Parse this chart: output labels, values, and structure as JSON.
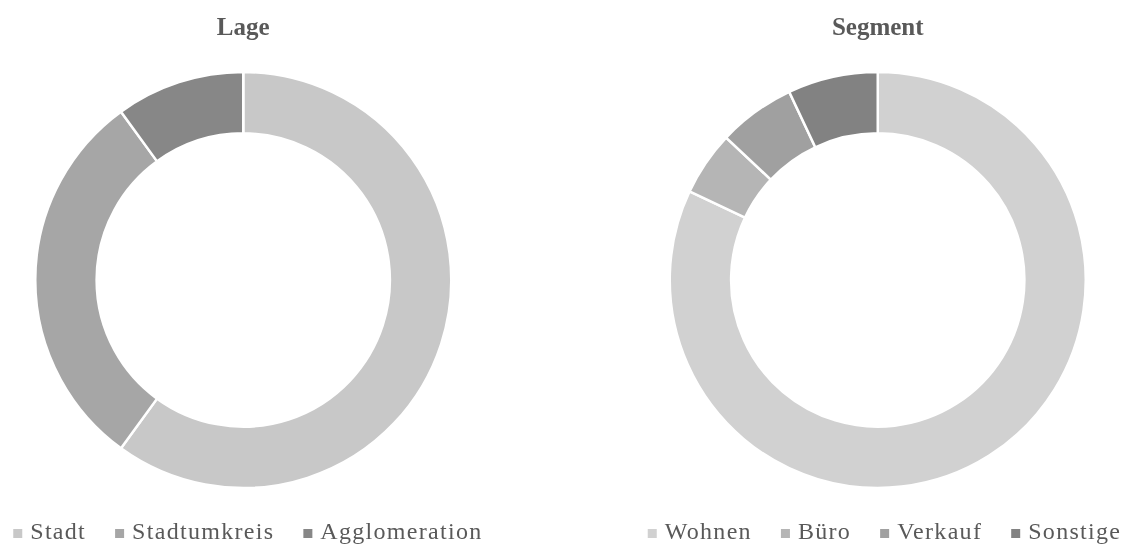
{
  "chart_data": [
    {
      "type": "donut",
      "title": "Lage",
      "categories": [
        "Stadt",
        "Stadtumkreis",
        "Agglomeration"
      ],
      "values": [
        60,
        30,
        10
      ],
      "colors": [
        "#c8c8c8",
        "#a6a6a6",
        "#878787"
      ],
      "legend": "bottom"
    },
    {
      "type": "donut",
      "title": "Segment",
      "categories": [
        "Wohnen",
        "Büro",
        "Verkauf",
        "Sonstige"
      ],
      "values": [
        82,
        5,
        6,
        7
      ],
      "colors": [
        "#d1d1d1",
        "#b5b5b5",
        "#a0a0a0",
        "#828282"
      ],
      "legend": "bottom"
    }
  ]
}
